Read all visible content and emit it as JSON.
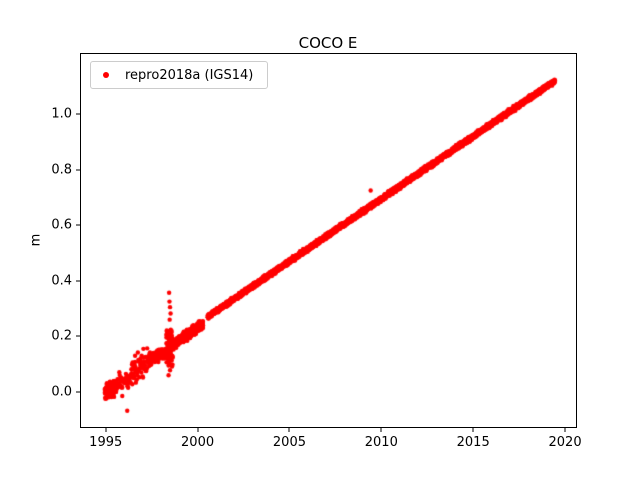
{
  "chart_data": {
    "type": "scatter",
    "title": "COCO E",
    "xlabel": "",
    "ylabel": "m",
    "xlim": [
      1993.6,
      2020.65
    ],
    "ylim": [
      -0.13,
      1.22
    ],
    "grid": false,
    "xticks": [
      {
        "value": 1995,
        "label": "1995"
      },
      {
        "value": 2000,
        "label": "2000"
      },
      {
        "value": 2005,
        "label": "2005"
      },
      {
        "value": 2010,
        "label": "2010"
      },
      {
        "value": 2015,
        "label": "2015"
      },
      {
        "value": 2020,
        "label": "2020"
      }
    ],
    "yticks": [
      {
        "value": 0.0,
        "label": "0.0"
      },
      {
        "value": 0.2,
        "label": "0.2"
      },
      {
        "value": 0.4,
        "label": "0.4"
      },
      {
        "value": 0.6,
        "label": "0.6"
      },
      {
        "value": 0.8,
        "label": "0.8"
      },
      {
        "value": 1.0,
        "label": "1.0"
      }
    ],
    "legend": {
      "label": "repro2018a (IGS14)",
      "position": "upper-left",
      "marker_color": "#ff0000"
    },
    "series": [
      {
        "name": "repro2018a (IGS14)",
        "color": "#ff0000",
        "marker_radius_px": 2.2,
        "trend_segments": [
          {
            "x0": 1994.95,
            "x1": 1995.6,
            "y0": 0.0,
            "y1": 0.02,
            "noise": 0.013,
            "step": 0.004
          },
          {
            "x0": 1995.6,
            "x1": 1996.4,
            "y0": 0.02,
            "y1": 0.05,
            "noise": 0.016,
            "step": 0.02
          },
          {
            "x0": 1996.4,
            "x1": 1997.3,
            "y0": 0.06,
            "y1": 0.11,
            "noise": 0.022,
            "step": 0.015
          },
          {
            "x0": 1997.3,
            "x1": 1998.3,
            "y0": 0.11,
            "y1": 0.145,
            "noise": 0.012,
            "step": 0.012
          },
          {
            "x0": 1998.3,
            "x1": 1998.65,
            "y0": 0.15,
            "y1": 0.17,
            "noise": 0.03,
            "step": 0.004
          },
          {
            "x0": 1998.65,
            "x1": 2000.3,
            "y0": 0.17,
            "y1": 0.245,
            "noise": 0.008,
            "step": 0.004
          },
          {
            "x0": 2000.55,
            "x1": 2019.45,
            "y0": 0.27,
            "y1": 1.12,
            "noise": 0.004,
            "step": 0.004
          }
        ],
        "outliers": [
          [
            1996.17,
            -0.068
          ],
          [
            1995.9,
            -0.015
          ],
          [
            1996.1,
            0.065
          ],
          [
            1996.6,
            0.13
          ],
          [
            1996.75,
            0.142
          ],
          [
            1996.9,
            0.12
          ],
          [
            1997.05,
            0.155
          ],
          [
            1998.42,
            0.06
          ],
          [
            1998.5,
            0.078
          ],
          [
            1998.55,
            0.098
          ],
          [
            1998.45,
            0.357
          ],
          [
            1998.47,
            0.325
          ],
          [
            1998.5,
            0.305
          ],
          [
            1998.53,
            0.282
          ],
          [
            1998.48,
            0.26
          ],
          [
            2009.42,
            0.725
          ]
        ]
      }
    ]
  }
}
